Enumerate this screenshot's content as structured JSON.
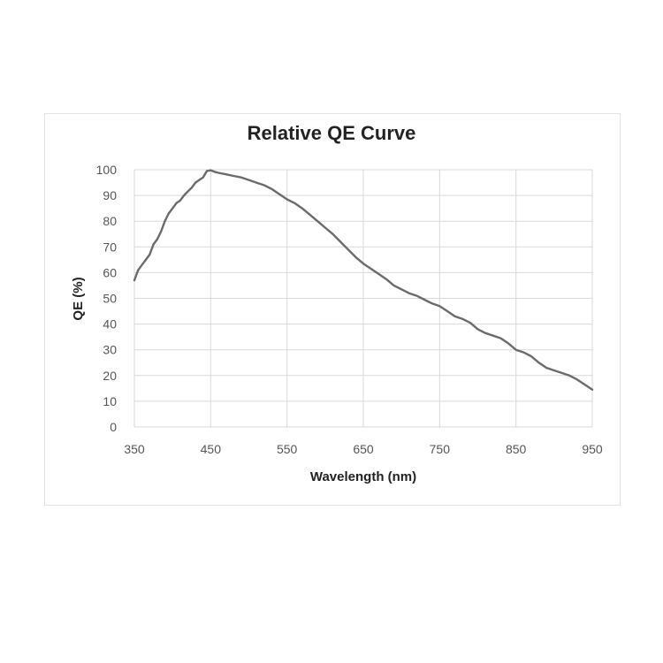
{
  "chart_data": {
    "type": "line",
    "title": "Relative QE Curve",
    "xlabel": "Wavelength (nm)",
    "ylabel": "QE (%)",
    "xlim": [
      350,
      950
    ],
    "ylim": [
      0,
      100
    ],
    "x_ticks": [
      350,
      450,
      550,
      650,
      750,
      850,
      950
    ],
    "y_ticks": [
      0,
      10,
      20,
      30,
      40,
      50,
      60,
      70,
      80,
      90,
      100
    ],
    "grid": true,
    "series": [
      {
        "color": "#6b6b6b",
        "x": [
          350,
          355,
          360,
          365,
          370,
          375,
          380,
          385,
          390,
          395,
          400,
          405,
          410,
          415,
          420,
          425,
          430,
          435,
          440,
          445,
          450,
          455,
          460,
          470,
          480,
          490,
          500,
          510,
          520,
          530,
          540,
          550,
          560,
          570,
          580,
          590,
          600,
          610,
          620,
          630,
          640,
          650,
          660,
          670,
          680,
          690,
          700,
          710,
          720,
          730,
          740,
          750,
          760,
          770,
          780,
          790,
          800,
          810,
          820,
          830,
          840,
          850,
          860,
          870,
          880,
          890,
          900,
          910,
          920,
          930,
          940,
          950
        ],
        "y": [
          57,
          61,
          63,
          65,
          67,
          71,
          73,
          76,
          80,
          83,
          85,
          87,
          88,
          90,
          91.5,
          93,
          95,
          96,
          97,
          99.5,
          99.8,
          99.2,
          98.8,
          98.2,
          97.6,
          97,
          96,
          95,
          94,
          92.5,
          90.5,
          88.5,
          87,
          85,
          82.5,
          80,
          77.5,
          75,
          72,
          69,
          66,
          63.5,
          61.5,
          59.5,
          57.5,
          55,
          53.5,
          52,
          51,
          49.5,
          48,
          47,
          45,
          43,
          42,
          40.5,
          38,
          36.5,
          35.5,
          34.5,
          32.5,
          30,
          29,
          27.5,
          25,
          23,
          22,
          21,
          20,
          18.5,
          16.5,
          14.5
        ]
      }
    ]
  }
}
